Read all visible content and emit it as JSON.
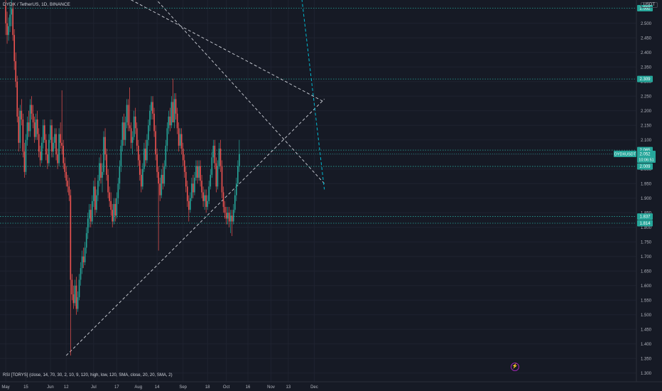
{
  "header": {
    "symbol_line": "DYDX / TetherUS, 1D, BINANCE",
    "currency": "USDT"
  },
  "indicator": {
    "rsi_line": "RSI [TORYS] (close, 14, 70, 30, 2, 10, 9, 120, high, low, 120, SMA, close, 20, 20, SMA, 2)"
  },
  "event_icon": "lightning-icon",
  "colors": {
    "up": "#26a69a",
    "down": "#ef5350",
    "grid": "#1f2330",
    "level": "#26a69a",
    "trend": "#d1d4dc",
    "cyan": "#00bcd4",
    "bg": "#161a25"
  },
  "chart_data": {
    "type": "candlestick",
    "x_tick_labels": [
      "May",
      "15",
      "Jun",
      "12",
      "Jul",
      "17",
      "Aug",
      "14",
      "Sep",
      "18",
      "Oct",
      "16",
      "Nov",
      "13",
      "Dec"
    ],
    "y_ticks": [
      1.3,
      1.35,
      1.4,
      1.45,
      1.5,
      1.55,
      1.6,
      1.65,
      1.7,
      1.75,
      1.8,
      1.85,
      1.9,
      1.95,
      2.0,
      2.05,
      2.1,
      2.15,
      2.2,
      2.25,
      2.3,
      2.35,
      2.4,
      2.45,
      2.5
    ],
    "y_tick_labels": [
      "1.300",
      "1.350",
      "1.400",
      "1.450",
      "1.500",
      "1.550",
      "1.600",
      "1.650",
      "1.700",
      "1.750",
      "1.800",
      "1.850",
      "1.900",
      "1.950",
      "2.000",
      "2.050",
      "2.100",
      "2.150",
      "2.200",
      "2.250",
      "2.300",
      "2.350",
      "2.400",
      "2.450",
      "2.500"
    ],
    "ylim": [
      1.27,
      2.58
    ],
    "price_levels": [
      {
        "value": 2.552,
        "label": "2.552"
      },
      {
        "value": 2.309,
        "label": "2.309"
      },
      {
        "value": 2.065,
        "label": "2.065"
      },
      {
        "value": 2.009,
        "label": "2.009"
      },
      {
        "value": 1.837,
        "label": "1.837"
      },
      {
        "value": 1.814,
        "label": "1.814"
      }
    ],
    "last_price": {
      "symbol": "DYDXUSDT",
      "price": "2.052",
      "countdown": "10:06:51"
    },
    "trend_lines": [
      {
        "from": [
          "2023-05-27",
          2.74
        ],
        "to": [
          "2023-12-08",
          2.23
        ]
      },
      {
        "from": [
          "2023-08-10",
          2.6
        ],
        "to": [
          "2023-12-08",
          1.95
        ]
      },
      {
        "from": [
          "2023-06-12",
          1.36
        ],
        "to": [
          "2023-12-08",
          2.24
        ]
      }
    ],
    "candles_ohlc": [
      [
        2.56,
        2.6,
        2.46,
        2.5
      ],
      [
        2.5,
        2.54,
        2.43,
        2.46
      ],
      [
        2.46,
        2.52,
        2.44,
        2.49
      ],
      [
        2.49,
        2.56,
        2.47,
        2.53
      ],
      [
        2.53,
        2.58,
        2.49,
        2.55
      ],
      [
        2.55,
        2.57,
        2.44,
        2.46
      ],
      [
        2.46,
        2.48,
        2.34,
        2.37
      ],
      [
        2.37,
        2.4,
        2.28,
        2.3
      ],
      [
        2.3,
        2.32,
        2.16,
        2.18
      ],
      [
        2.18,
        2.21,
        2.06,
        2.09
      ],
      [
        2.09,
        2.22,
        2.07,
        2.2
      ],
      [
        2.2,
        2.24,
        2.15,
        2.17
      ],
      [
        2.17,
        2.19,
        2.04,
        2.06
      ],
      [
        2.06,
        2.09,
        1.97,
        1.99
      ],
      [
        1.99,
        2.12,
        1.98,
        2.1
      ],
      [
        2.1,
        2.18,
        2.08,
        2.16
      ],
      [
        2.16,
        2.2,
        2.11,
        2.13
      ],
      [
        2.13,
        2.24,
        2.11,
        2.22
      ],
      [
        2.22,
        2.25,
        2.17,
        2.19
      ],
      [
        2.19,
        2.22,
        2.14,
        2.16
      ],
      [
        2.16,
        2.18,
        2.09,
        2.11
      ],
      [
        2.11,
        2.19,
        2.1,
        2.17
      ],
      [
        2.17,
        2.2,
        2.1,
        2.12
      ],
      [
        2.12,
        2.14,
        2.04,
        2.06
      ],
      [
        2.06,
        2.08,
        2.01,
        2.03
      ],
      [
        2.03,
        2.11,
        2.02,
        2.09
      ],
      [
        2.09,
        2.17,
        2.07,
        2.15
      ],
      [
        2.15,
        2.17,
        2.09,
        2.1
      ],
      [
        2.1,
        2.12,
        2.03,
        2.05
      ],
      [
        2.05,
        2.07,
        2.0,
        2.02
      ],
      [
        2.02,
        2.12,
        2.01,
        2.1
      ],
      [
        2.1,
        2.17,
        2.09,
        2.15
      ],
      [
        2.15,
        2.17,
        2.04,
        2.06
      ],
      [
        2.06,
        2.11,
        2.04,
        2.09
      ],
      [
        2.09,
        2.14,
        2.07,
        2.12
      ],
      [
        2.12,
        2.14,
        2.03,
        2.05
      ],
      [
        2.05,
        2.07,
        2.0,
        2.02
      ],
      [
        2.02,
        2.14,
        2.01,
        2.12
      ],
      [
        2.12,
        2.16,
        2.07,
        2.09
      ],
      [
        2.09,
        2.27,
        2.05,
        2.08
      ],
      [
        2.08,
        2.1,
        2.0,
        2.02
      ],
      [
        2.02,
        2.04,
        1.97,
        1.99
      ],
      [
        1.99,
        2.01,
        1.94,
        1.96
      ],
      [
        1.96,
        1.98,
        1.92,
        1.94
      ],
      [
        1.94,
        1.97,
        1.89,
        1.91
      ],
      [
        1.91,
        1.93,
        1.36,
        1.62
      ],
      [
        1.62,
        1.64,
        1.55,
        1.57
      ],
      [
        1.57,
        1.6,
        1.52,
        1.54
      ],
      [
        1.54,
        1.62,
        1.53,
        1.6
      ],
      [
        1.6,
        1.63,
        1.5,
        1.52
      ],
      [
        1.52,
        1.58,
        1.51,
        1.56
      ],
      [
        1.56,
        1.64,
        1.55,
        1.62
      ],
      [
        1.62,
        1.68,
        1.6,
        1.66
      ],
      [
        1.66,
        1.72,
        1.64,
        1.7
      ],
      [
        1.7,
        1.73,
        1.66,
        1.68
      ],
      [
        1.68,
        1.75,
        1.67,
        1.73
      ],
      [
        1.73,
        1.8,
        1.71,
        1.78
      ],
      [
        1.78,
        1.85,
        1.76,
        1.83
      ],
      [
        1.83,
        1.88,
        1.8,
        1.86
      ],
      [
        1.86,
        1.88,
        1.8,
        1.82
      ],
      [
        1.82,
        1.91,
        1.81,
        1.89
      ],
      [
        1.89,
        1.96,
        1.87,
        1.94
      ],
      [
        1.94,
        1.97,
        1.84,
        1.86
      ],
      [
        1.86,
        1.93,
        1.85,
        1.91
      ],
      [
        1.91,
        1.98,
        1.89,
        1.96
      ],
      [
        1.96,
        2.04,
        1.94,
        2.02
      ],
      [
        2.02,
        2.05,
        1.95,
        1.97
      ],
      [
        1.97,
        2.02,
        1.92,
        1.99
      ],
      [
        1.99,
        2.13,
        1.98,
        2.11
      ],
      [
        2.11,
        2.14,
        2.03,
        2.05
      ],
      [
        2.05,
        2.07,
        1.96,
        1.98
      ],
      [
        1.98,
        2.0,
        1.9,
        1.92
      ],
      [
        1.92,
        1.94,
        1.87,
        1.89
      ],
      [
        1.89,
        1.92,
        1.84,
        1.86
      ],
      [
        1.86,
        1.88,
        1.8,
        1.82
      ],
      [
        1.82,
        1.9,
        1.81,
        1.88
      ],
      [
        1.88,
        1.9,
        1.82,
        1.84
      ],
      [
        1.84,
        1.92,
        1.83,
        1.9
      ],
      [
        1.9,
        1.97,
        1.88,
        1.95
      ],
      [
        1.95,
        2.03,
        1.93,
        2.01
      ],
      [
        2.01,
        2.1,
        1.99,
        2.08
      ],
      [
        2.08,
        2.18,
        2.06,
        2.16
      ],
      [
        2.16,
        2.19,
        2.08,
        2.1
      ],
      [
        2.1,
        2.18,
        2.08,
        2.16
      ],
      [
        2.16,
        2.24,
        2.14,
        2.22
      ],
      [
        2.22,
        2.24,
        2.13,
        2.15
      ],
      [
        2.15,
        2.28,
        2.13,
        2.14
      ],
      [
        2.14,
        2.16,
        2.07,
        2.09
      ],
      [
        2.09,
        2.13,
        2.05,
        2.11
      ],
      [
        2.11,
        2.2,
        2.1,
        2.18
      ],
      [
        2.18,
        2.21,
        2.12,
        2.14
      ],
      [
        2.14,
        2.16,
        2.06,
        2.08
      ],
      [
        2.08,
        2.1,
        2.01,
        2.03
      ],
      [
        2.03,
        2.05,
        1.96,
        1.98
      ],
      [
        1.98,
        2.0,
        1.92,
        1.94
      ],
      [
        1.94,
        2.02,
        1.93,
        2.0
      ],
      [
        2.0,
        2.09,
        1.99,
        2.07
      ],
      [
        2.07,
        2.1,
        2.01,
        2.03
      ],
      [
        2.03,
        2.12,
        2.02,
        2.1
      ],
      [
        2.1,
        2.17,
        2.08,
        2.15
      ],
      [
        2.15,
        2.22,
        2.13,
        2.2
      ],
      [
        2.2,
        2.25,
        2.17,
        2.23
      ],
      [
        2.23,
        2.25,
        2.17,
        2.19
      ],
      [
        2.19,
        2.21,
        2.11,
        2.13
      ],
      [
        2.13,
        2.15,
        2.03,
        2.05
      ],
      [
        2.05,
        2.07,
        1.97,
        1.99
      ],
      [
        1.99,
        2.01,
        1.72,
        1.95
      ],
      [
        1.95,
        1.97,
        1.89,
        1.91
      ],
      [
        1.91,
        2.0,
        1.9,
        1.98
      ],
      [
        1.98,
        2.02,
        1.93,
        1.95
      ],
      [
        1.95,
        2.03,
        1.94,
        2.01
      ],
      [
        2.01,
        2.1,
        2.0,
        2.08
      ],
      [
        2.08,
        2.16,
        2.06,
        2.14
      ],
      [
        2.14,
        2.2,
        2.12,
        2.18
      ],
      [
        2.18,
        2.21,
        2.13,
        2.15
      ],
      [
        2.15,
        2.25,
        2.14,
        2.23
      ],
      [
        2.23,
        2.31,
        2.21,
        2.16
      ],
      [
        2.16,
        2.26,
        2.14,
        2.24
      ],
      [
        2.24,
        2.26,
        2.17,
        2.19
      ],
      [
        2.19,
        2.21,
        2.12,
        2.14
      ],
      [
        2.14,
        2.16,
        2.06,
        2.08
      ],
      [
        2.08,
        2.14,
        2.07,
        2.12
      ],
      [
        2.12,
        2.14,
        2.05,
        2.07
      ],
      [
        2.07,
        2.09,
        2.01,
        2.03
      ],
      [
        2.03,
        2.05,
        1.97,
        1.99
      ],
      [
        1.99,
        2.01,
        1.92,
        1.94
      ],
      [
        1.94,
        1.96,
        1.87,
        1.89
      ],
      [
        1.89,
        1.91,
        1.82,
        1.86
      ],
      [
        1.86,
        1.92,
        1.85,
        1.9
      ],
      [
        1.9,
        1.97,
        1.89,
        1.95
      ],
      [
        1.95,
        1.98,
        1.9,
        1.92
      ],
      [
        1.92,
        1.99,
        1.91,
        1.97
      ],
      [
        1.97,
        2.03,
        1.96,
        2.01
      ],
      [
        2.01,
        2.03,
        1.95,
        1.97
      ],
      [
        1.97,
        2.03,
        1.96,
        2.01
      ],
      [
        2.01,
        2.03,
        1.94,
        1.96
      ],
      [
        1.96,
        1.98,
        1.9,
        1.92
      ],
      [
        1.92,
        1.94,
        1.87,
        1.89
      ],
      [
        1.89,
        1.93,
        1.86,
        1.91
      ],
      [
        1.91,
        1.93,
        1.85,
        1.87
      ],
      [
        1.87,
        1.91,
        1.86,
        1.89
      ],
      [
        1.89,
        1.96,
        1.88,
        1.94
      ],
      [
        1.94,
        2.0,
        1.93,
        1.98
      ],
      [
        1.98,
        2.06,
        1.97,
        2.04
      ],
      [
        2.04,
        2.1,
        2.02,
        2.08
      ],
      [
        2.08,
        2.1,
        2.0,
        2.02
      ],
      [
        2.02,
        2.04,
        1.92,
        1.94
      ],
      [
        1.94,
        2.03,
        1.93,
        2.01
      ],
      [
        2.01,
        2.09,
        2.0,
        2.07
      ],
      [
        2.07,
        2.1,
        1.99,
        2.01
      ],
      [
        2.01,
        2.03,
        1.9,
        1.92
      ],
      [
        1.92,
        1.94,
        1.85,
        1.87
      ],
      [
        1.87,
        1.89,
        1.83,
        1.85
      ],
      [
        1.85,
        1.87,
        1.81,
        1.83
      ],
      [
        1.83,
        1.87,
        1.81,
        1.85
      ],
      [
        1.85,
        1.87,
        1.8,
        1.82
      ],
      [
        1.82,
        1.86,
        1.78,
        1.84
      ],
      [
        1.84,
        1.86,
        1.77,
        1.82
      ],
      [
        1.82,
        1.88,
        1.81,
        1.86
      ],
      [
        1.86,
        1.93,
        1.85,
        1.91
      ],
      [
        1.91,
        1.97,
        1.89,
        1.95
      ],
      [
        1.95,
        2.03,
        1.94,
        2.01
      ],
      [
        2.01,
        2.1,
        1.99,
        2.052
      ]
    ]
  }
}
